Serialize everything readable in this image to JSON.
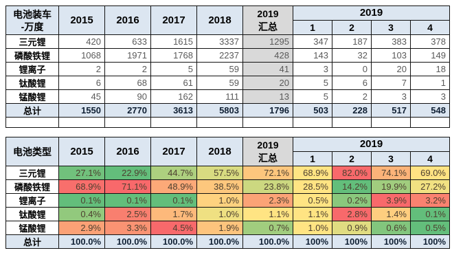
{
  "colors": {
    "header_bg": "#dce6f1",
    "summary_col_bg": "#d9d9d9",
    "total_row_bg": "#dce6f1",
    "border": "#111111",
    "value_text": "#595959",
    "scale_min_green": "#63be7b",
    "scale_mid_yellow": "#ffe483",
    "scale_max_red": "#f8696b"
  },
  "chart_data": [
    {
      "type": "table",
      "title_lines": [
        "电池装车",
        "-万度"
      ],
      "year_columns": [
        "2015",
        "2016",
        "2017",
        "2018"
      ],
      "summary_lines": [
        "2019",
        "汇总"
      ],
      "group_header": "2019",
      "month_columns": [
        "1",
        "2",
        "3",
        "4"
      ],
      "rows": [
        {
          "label": "三元锂",
          "values": [
            "420",
            "633",
            "1615",
            "3337",
            "1295",
            "347",
            "187",
            "383",
            "378"
          ]
        },
        {
          "label": "磷酸铁锂",
          "values": [
            "1068",
            "1971",
            "1768",
            "2237",
            "428",
            "143",
            "32",
            "103",
            "149"
          ]
        },
        {
          "label": "锂离子",
          "values": [
            "2",
            "2",
            "5",
            "59",
            "41",
            "3",
            "0",
            "20",
            "18"
          ]
        },
        {
          "label": "钛酸锂",
          "values": [
            "6",
            "68",
            "61",
            "59",
            "20",
            "5",
            "6",
            "7",
            "1"
          ]
        },
        {
          "label": "锰酸锂",
          "values": [
            "45",
            "90",
            "162",
            "111",
            "13",
            "5",
            "2",
            "3",
            "3"
          ]
        }
      ],
      "total_row": {
        "label": "总计",
        "values": [
          "1550",
          "2770",
          "3613",
          "5803",
          "1796",
          "503",
          "228",
          "517",
          "548"
        ]
      },
      "heatmap": false,
      "summary_col_gray": true,
      "spacer_row": true
    },
    {
      "type": "table",
      "title_lines": [
        "电池类型"
      ],
      "year_columns": [
        "2015",
        "2016",
        "2017",
        "2018"
      ],
      "summary_lines": [
        "2019",
        "汇总"
      ],
      "group_header": "2019",
      "month_columns": [
        "1",
        "2",
        "3",
        "4"
      ],
      "rows": [
        {
          "label": "三元锂",
          "values": [
            "27.1%",
            "22.9%",
            "44.7%",
            "57.5%",
            "72.1%",
            "68.9%",
            "82.0%",
            "74.1%",
            "69.0%"
          ]
        },
        {
          "label": "磷酸铁锂",
          "values": [
            "68.9%",
            "71.1%",
            "48.9%",
            "38.5%",
            "23.8%",
            "28.5%",
            "14.2%",
            "19.9%",
            "27.2%"
          ]
        },
        {
          "label": "锂离子",
          "values": [
            "0.1%",
            "0.1%",
            "0.1%",
            "1.0%",
            "2.3%",
            "0.5%",
            "0.2%",
            "3.9%",
            "3.2%"
          ]
        },
        {
          "label": "钛酸锂",
          "values": [
            "0.4%",
            "2.5%",
            "1.7%",
            "1.0%",
            "1.1%",
            "1.1%",
            "2.8%",
            "1.4%",
            "0.1%"
          ]
        },
        {
          "label": "锰酸锂",
          "values": [
            "2.9%",
            "3.3%",
            "4.5%",
            "1.9%",
            "0.7%",
            "1.0%",
            "0.9%",
            "0.6%",
            "0.5%"
          ]
        }
      ],
      "total_row": {
        "label": "总计",
        "values": [
          "100.0%",
          "100.0%",
          "100.0%",
          "100.0%",
          "100.0%",
          "100%",
          "100%",
          "100%",
          "100%"
        ]
      },
      "heatmap": true,
      "summary_col_gray": false,
      "spacer_row": false
    }
  ]
}
